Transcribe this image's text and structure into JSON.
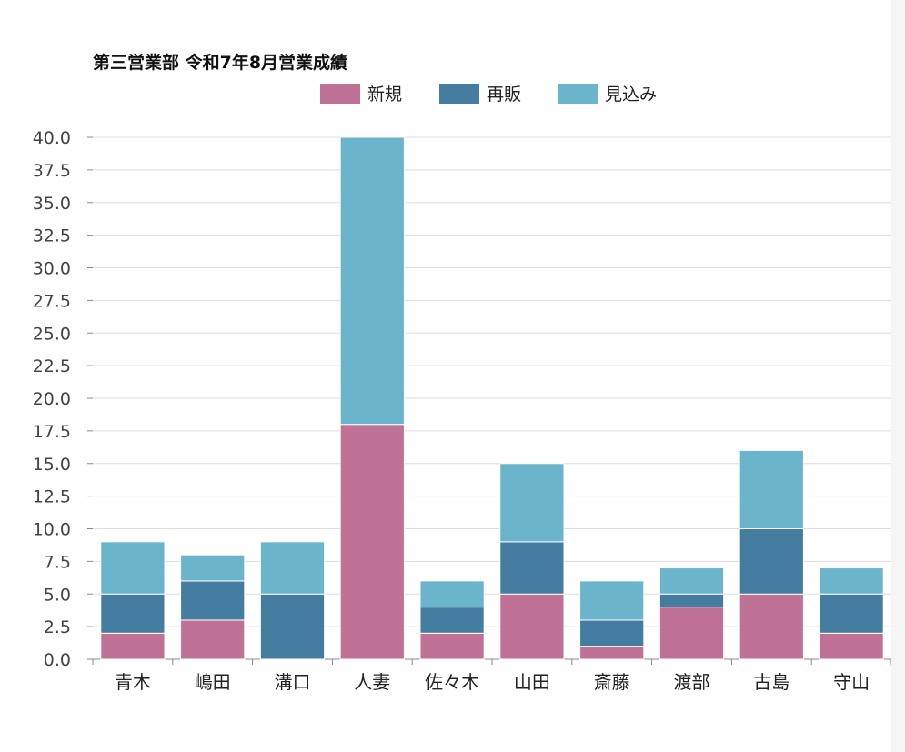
{
  "chart_data": {
    "type": "bar",
    "stacked": true,
    "title": "第三営業部  令和7年8月営業成績",
    "xlabel": "",
    "ylabel": "",
    "ylim": [
      0,
      40
    ],
    "ytick_step": 2.5,
    "ytick_labels": [
      "0.0",
      "2.5",
      "5.0",
      "7.5",
      "10.0",
      "12.5",
      "15.0",
      "17.5",
      "20.0",
      "22.5",
      "25.0",
      "27.5",
      "30.0",
      "32.5",
      "35.0",
      "37.5",
      "40.0"
    ],
    "grid": true,
    "legend_position": "top-center",
    "categories": [
      "青木",
      "嶋田",
      "溝口",
      "人妻",
      "佐々木",
      "山田",
      "斎藤",
      "渡部",
      "古島",
      "守山"
    ],
    "series": [
      {
        "name": "新規",
        "color": "#bf7296",
        "values": [
          2,
          3,
          0,
          18,
          2,
          5,
          1,
          4,
          5,
          2
        ]
      },
      {
        "name": "再販",
        "color": "#447da0",
        "values": [
          3,
          3,
          5,
          0,
          2,
          4,
          2,
          1,
          5,
          3
        ]
      },
      {
        "name": "見込み",
        "color": "#6ab4cc",
        "values": [
          4,
          2,
          4,
          22,
          2,
          6,
          3,
          2,
          6,
          2
        ]
      }
    ]
  }
}
